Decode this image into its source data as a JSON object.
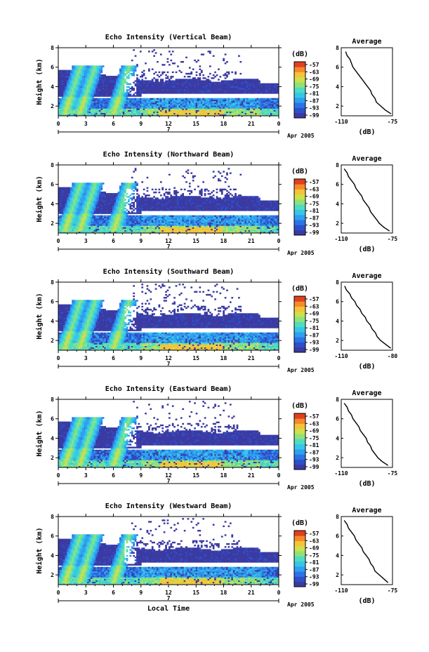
{
  "chart_data": [
    {
      "type": "heatmap",
      "title": "Echo Intensity (Vertical Beam)",
      "ylabel": "Height (km)",
      "y_ticks": [
        "2",
        "4",
        "6",
        "8"
      ],
      "ylim": [
        1,
        8
      ],
      "x_ticks": [
        "0",
        "3",
        "6",
        "9",
        "12",
        "15",
        "18",
        "21",
        "0"
      ],
      "xlim": [
        0,
        24
      ],
      "date_marker": "7",
      "date_label": "Apr 2005",
      "colorbar": {
        "unit": "(dB)",
        "ticks": [
          "-57",
          "-63",
          "-69",
          "-75",
          "-81",
          "-87",
          "-93",
          "-99"
        ]
      },
      "profile": {
        "title": "Average",
        "xlabel": "(dB)",
        "x_ticks": [
          "-110",
          "-75"
        ],
        "xlim": [
          -110,
          -75
        ],
        "y_ticks": [
          "2",
          "4",
          "6",
          "8"
        ],
        "height": [
          1.2,
          1.6,
          2.0,
          2.4,
          2.8,
          3.2,
          3.6,
          4.0,
          4.4,
          4.8,
          5.2,
          5.6,
          6.0,
          6.4,
          6.8,
          7.2,
          7.6
        ],
        "db": [
          -76,
          -80,
          -83,
          -86,
          -87,
          -89,
          -90,
          -92,
          -94,
          -96,
          -98,
          -100,
          -102,
          -103,
          -104,
          -106,
          -107
        ]
      }
    },
    {
      "type": "heatmap",
      "title": "Echo Intensity (Northward Beam)",
      "ylabel": "Height (km)",
      "y_ticks": [
        "2",
        "4",
        "6",
        "8"
      ],
      "ylim": [
        1,
        8
      ],
      "x_ticks": [
        "0",
        "3",
        "6",
        "9",
        "12",
        "15",
        "18",
        "21",
        "0"
      ],
      "xlim": [
        0,
        24
      ],
      "date_marker": "7",
      "date_label": "Apr 2005",
      "colorbar": {
        "unit": "(dB)",
        "ticks": [
          "-57",
          "-63",
          "-69",
          "-75",
          "-81",
          "-87",
          "-93",
          "-99"
        ]
      },
      "profile": {
        "title": "Average",
        "xlabel": "(dB)",
        "x_ticks": [
          "-110",
          "-75"
        ],
        "xlim": [
          -110,
          -75
        ],
        "y_ticks": [
          "2",
          "4",
          "6",
          "8"
        ],
        "height": [
          1.2,
          1.6,
          2.0,
          2.4,
          2.8,
          3.2,
          3.6,
          4.0,
          4.4,
          4.8,
          5.2,
          5.6,
          6.0,
          6.4,
          6.8,
          7.2,
          7.6
        ],
        "db": [
          -77,
          -81,
          -84,
          -86,
          -88,
          -90,
          -91,
          -93,
          -95,
          -96,
          -98,
          -100,
          -101,
          -103,
          -105,
          -106,
          -108
        ]
      }
    },
    {
      "type": "heatmap",
      "title": "Echo Intensity (Southward Beam)",
      "ylabel": "Height (km)",
      "y_ticks": [
        "2",
        "4",
        "6",
        "8"
      ],
      "ylim": [
        1,
        8
      ],
      "x_ticks": [
        "0",
        "3",
        "6",
        "9",
        "12",
        "15",
        "18",
        "21",
        "0"
      ],
      "xlim": [
        0,
        24
      ],
      "date_marker": "7",
      "date_label": "Apr 2005",
      "colorbar": {
        "unit": "(dB)",
        "ticks": [
          "-57",
          "-63",
          "-69",
          "-75",
          "-81",
          "-87",
          "-93",
          "-99"
        ]
      },
      "profile": {
        "title": "Average",
        "xlabel": "(dB)",
        "x_ticks": [
          "-110",
          "-80"
        ],
        "xlim": [
          -110,
          -80
        ],
        "y_ticks": [
          "2",
          "4",
          "6",
          "8"
        ],
        "height": [
          1.2,
          1.6,
          2.0,
          2.4,
          2.8,
          3.2,
          3.6,
          4.0,
          4.4,
          4.8,
          5.2,
          5.6,
          6.0,
          6.4,
          6.8,
          7.2,
          7.6
        ],
        "db": [
          -81,
          -84,
          -87,
          -89,
          -90,
          -92,
          -93,
          -95,
          -96,
          -98,
          -99,
          -101,
          -102,
          -104,
          -105,
          -107,
          -108
        ]
      }
    },
    {
      "type": "heatmap",
      "title": "Echo Intensity (Eastward Beam)",
      "ylabel": "Height (km)",
      "y_ticks": [
        "2",
        "4",
        "6",
        "8"
      ],
      "ylim": [
        1,
        8
      ],
      "x_ticks": [
        "0",
        "3",
        "6",
        "9",
        "12",
        "15",
        "18",
        "21",
        "0"
      ],
      "xlim": [
        0,
        24
      ],
      "date_marker": "7",
      "date_label": "Apr 2005",
      "colorbar": {
        "unit": "(dB)",
        "ticks": [
          "-57",
          "-63",
          "-69",
          "-75",
          "-81",
          "-87",
          "-93",
          "-99"
        ]
      },
      "profile": {
        "title": "Average",
        "xlabel": "(dB)",
        "x_ticks": [
          "-110",
          "-75"
        ],
        "xlim": [
          -110,
          -75
        ],
        "y_ticks": [
          "2",
          "4",
          "6",
          "8"
        ],
        "height": [
          1.2,
          1.6,
          2.0,
          2.4,
          2.8,
          3.2,
          3.6,
          4.0,
          4.4,
          4.8,
          5.2,
          5.6,
          6.0,
          6.4,
          6.8,
          7.2,
          7.6
        ],
        "db": [
          -78,
          -82,
          -85,
          -87,
          -89,
          -90,
          -92,
          -93,
          -95,
          -97,
          -98,
          -100,
          -102,
          -103,
          -105,
          -106,
          -108
        ]
      }
    },
    {
      "type": "heatmap",
      "title": "Echo Intensity (Westward Beam)",
      "ylabel": "Height (km)",
      "y_ticks": [
        "2",
        "4",
        "6",
        "8"
      ],
      "ylim": [
        1,
        8
      ],
      "x_ticks": [
        "0",
        "3",
        "6",
        "9",
        "12",
        "15",
        "18",
        "21",
        "0"
      ],
      "xlim": [
        0,
        24
      ],
      "date_marker": "7",
      "date_label": "Apr 2005",
      "xlabel": "Local Time",
      "colorbar": {
        "unit": "(dB)",
        "ticks": [
          "-57",
          "-63",
          "-69",
          "-75",
          "-81",
          "-87",
          "-93",
          "-99"
        ]
      },
      "profile": {
        "title": "Average",
        "xlabel": "(dB)",
        "x_ticks": [
          "-110",
          "-75"
        ],
        "xlim": [
          -110,
          -75
        ],
        "y_ticks": [
          "2",
          "4",
          "6",
          "8"
        ],
        "height": [
          1.2,
          1.6,
          2.0,
          2.4,
          2.8,
          3.2,
          3.6,
          4.0,
          4.4,
          4.8,
          5.2,
          5.6,
          6.0,
          6.4,
          6.8,
          7.2,
          7.6
        ],
        "db": [
          -78,
          -81,
          -84,
          -87,
          -88,
          -90,
          -91,
          -93,
          -95,
          -96,
          -98,
          -100,
          -101,
          -103,
          -105,
          -106,
          -108
        ]
      }
    }
  ],
  "colors": {
    "colormap": [
      "#3b3aa3",
      "#2d50c8",
      "#2b74e6",
      "#2fa0f0",
      "#37c7e6",
      "#4fdcc0",
      "#8fe27a",
      "#cfe04a",
      "#f6c23a",
      "#f58a2a",
      "#e04020"
    ]
  }
}
